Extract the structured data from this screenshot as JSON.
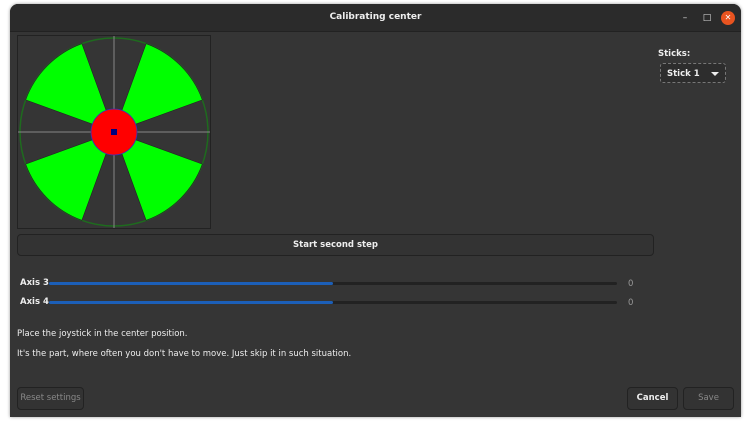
{
  "window": {
    "title": "Calibrating center",
    "minimize_icon": "minimize-icon",
    "maximize_icon": "maximize-icon",
    "close_icon": "close-icon"
  },
  "stage": {
    "colors": {
      "sector": "#00ff00",
      "center": "#ff0000",
      "dot": "#000080",
      "ring": "#1e6b1e",
      "crosshair": "#888888"
    }
  },
  "sticks": {
    "label": "Sticks:",
    "selected": "Stick 1"
  },
  "start_button": "Start second step",
  "axes": [
    {
      "label": "Axis 3",
      "value": "0",
      "fill_fraction": 0.5
    },
    {
      "label": "Axis 4",
      "value": "0",
      "fill_fraction": 0.5
    }
  ],
  "instructions": {
    "line1": "Place the joystick in the center position.",
    "line2": "It's the part, where often you don't have to move. Just skip it in such situation."
  },
  "buttons": {
    "reset": "Reset settings",
    "cancel": "Cancel",
    "save": "Save"
  }
}
